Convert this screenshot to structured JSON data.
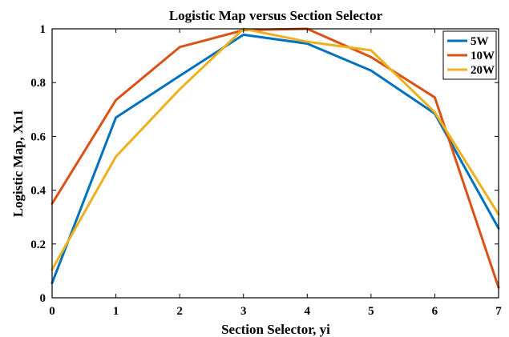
{
  "chart_data": {
    "type": "line",
    "title": "Logistic Map versus Section Selector",
    "xlabel": "Section Selector, yi",
    "ylabel": "Logistic Map, Xn1",
    "x": [
      0,
      1,
      2,
      3,
      4,
      5,
      6,
      7
    ],
    "xlim": [
      0,
      7
    ],
    "ylim": [
      0,
      1
    ],
    "xticks": [
      "0",
      "1",
      "2",
      "3",
      "4",
      "5",
      "6",
      "7"
    ],
    "yticks": [
      "0",
      "0.2",
      "0.4",
      "0.6",
      "0.8",
      "1"
    ],
    "ytick_values": [
      0,
      0.2,
      0.4,
      0.6,
      0.8,
      1
    ],
    "grid": false,
    "legend_position": "top-right",
    "series": [
      {
        "name": "5W",
        "color": "#0072BD",
        "values": [
          0.055,
          0.67,
          0.825,
          0.978,
          0.945,
          0.845,
          0.685,
          0.258
        ]
      },
      {
        "name": "10W",
        "color": "#D95319",
        "values": [
          0.35,
          0.735,
          0.932,
          0.995,
          1.0,
          0.895,
          0.745,
          0.038
        ]
      },
      {
        "name": "20W",
        "color": "#EDB120",
        "values": [
          0.105,
          0.525,
          0.775,
          1.0,
          0.952,
          0.92,
          0.69,
          0.31
        ]
      }
    ]
  }
}
